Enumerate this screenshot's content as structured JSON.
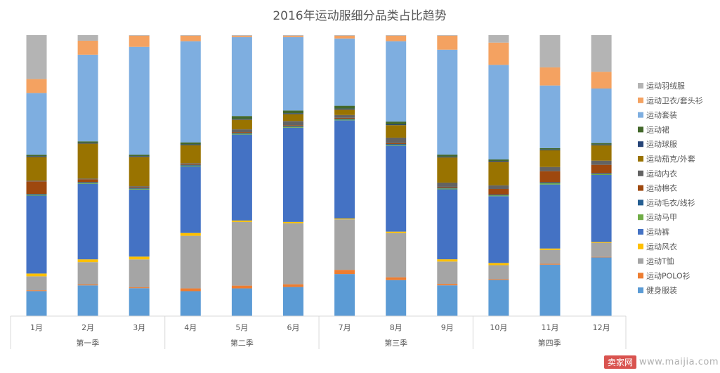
{
  "chart_data": {
    "type": "stacked-bar-100",
    "title": "2016年运动服细分品类占比趋势",
    "categories": [
      "1月",
      "2月",
      "3月",
      "4月",
      "5月",
      "6月",
      "7月",
      "8月",
      "9月",
      "10月",
      "11月",
      "12月"
    ],
    "groups": [
      {
        "label": "第一季",
        "months": [
          "1月",
          "2月",
          "3月"
        ]
      },
      {
        "label": "第二季",
        "months": [
          "4月",
          "5月",
          "6月"
        ]
      },
      {
        "label": "第三季",
        "months": [
          "7月",
          "8月",
          "9月"
        ]
      },
      {
        "label": "第四季",
        "months": [
          "10月",
          "11月",
          "12月"
        ]
      }
    ],
    "ylim": [
      0,
      100
    ],
    "legend_position": "right",
    "series": [
      {
        "name": "健身服装",
        "color": "#5b9bd5",
        "values": [
          9,
          11,
          10,
          9,
          10,
          10.5,
          15,
          13,
          11,
          13,
          18.5,
          21
        ]
      },
      {
        "name": "运动POLO衫",
        "color": "#ed7d31",
        "values": [
          0.3,
          0.3,
          0.3,
          1,
          1,
          1,
          1.5,
          1,
          0.5,
          0.3,
          0.3,
          0.2
        ]
      },
      {
        "name": "运动T恤",
        "color": "#a5a5a5",
        "values": [
          5,
          8,
          10,
          19,
          23,
          22,
          18,
          16,
          8,
          5,
          5,
          5
        ]
      },
      {
        "name": "运动风衣",
        "color": "#ffc000",
        "values": [
          1,
          1,
          1,
          1,
          0.5,
          0.5,
          0.3,
          0.5,
          0.8,
          0.8,
          0.5,
          0.3
        ]
      },
      {
        "name": "运动裤",
        "color": "#4472c4",
        "values": [
          28,
          27,
          24,
          24,
          31,
          34,
          35,
          31,
          25,
          24,
          23,
          24
        ]
      },
      {
        "name": "运动马甲",
        "color": "#70ad47",
        "values": [
          0.3,
          0.3,
          0.3,
          0.3,
          0.3,
          0.3,
          0.3,
          0.3,
          0.3,
          0.3,
          0.5,
          0.3
        ]
      },
      {
        "name": "运动毛衣/线衫",
        "color": "#255e91",
        "values": [
          0.3,
          0.3,
          0.3,
          0.3,
          0.3,
          0.3,
          0.3,
          0.3,
          0.3,
          0.3,
          0.3,
          0.3
        ]
      },
      {
        "name": "运动棉衣",
        "color": "#9e480e",
        "values": [
          4.5,
          1,
          0.3,
          0.3,
          0.3,
          0.3,
          0.3,
          0.3,
          0.3,
          2,
          4,
          3
        ]
      },
      {
        "name": "运动内衣",
        "color": "#636363",
        "values": [
          0.3,
          0.3,
          0.3,
          0.3,
          1,
          1.5,
          1,
          2,
          1.5,
          1.3,
          1.5,
          1.5
        ]
      },
      {
        "name": "运动茄克/外套",
        "color": "#997300",
        "values": [
          8.5,
          12.5,
          10.5,
          6.5,
          3.5,
          2.5,
          2,
          4.5,
          9,
          8.5,
          6,
          5.5
        ]
      },
      {
        "name": "运动球服",
        "color": "#264478",
        "values": [
          0.3,
          0.3,
          0.3,
          0.3,
          0.3,
          0.3,
          0.3,
          0.3,
          0.3,
          0.3,
          0.3,
          0.3
        ]
      },
      {
        "name": "运动裙",
        "color": "#43682b",
        "values": [
          0.5,
          0.5,
          0.5,
          0.7,
          1,
          1,
          1,
          1,
          0.7,
          0.5,
          0.5,
          0.5
        ]
      },
      {
        "name": "运动套装",
        "color": "#7eaee0",
        "values": [
          22.2,
          31,
          38.6,
          36.5,
          28.5,
          26.5,
          24,
          29,
          37.5,
          34,
          22.5,
          19.5
        ]
      },
      {
        "name": "运动卫衣/套头衫",
        "color": "#f4a261",
        "values": [
          5,
          5,
          4,
          2,
          0.5,
          0.5,
          1,
          2,
          5,
          8,
          6.5,
          6
        ]
      },
      {
        "name": "运动羽绒服",
        "color": "#b4b4b4",
        "values": [
          15.8,
          2,
          0.2,
          0.2,
          0.2,
          0.2,
          0.2,
          0.2,
          0.2,
          2.7,
          11.6,
          13.1
        ]
      }
    ]
  },
  "watermark": {
    "badge": "卖家网",
    "url": "www.maijia.com"
  }
}
